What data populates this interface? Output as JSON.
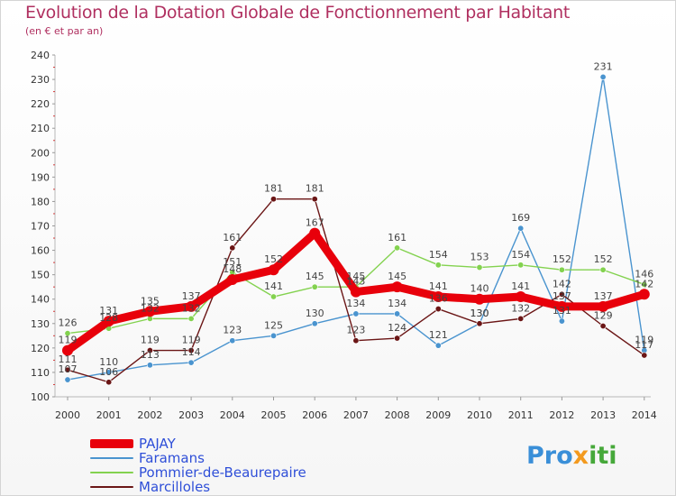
{
  "chart_data": {
    "type": "line",
    "title": "Evolution de la Dotation Globale de Fonctionnement par Habitant",
    "subtitle": "(en € et par an)",
    "categories": [
      "2000",
      "2001",
      "2002",
      "2003",
      "2004",
      "2005",
      "2006",
      "2007",
      "2008",
      "2009",
      "2010",
      "2011",
      "2012",
      "2013",
      "2014"
    ],
    "ylim": [
      100,
      240
    ],
    "yticks": [
      100,
      110,
      120,
      130,
      140,
      150,
      160,
      170,
      180,
      190,
      200,
      210,
      220,
      230,
      240
    ],
    "grid": false,
    "legend_position": "bottom-left",
    "series": [
      {
        "name": "PAJAY",
        "color": "#e8000b",
        "values": [
          119,
          131,
          135,
          137,
          148,
          152,
          167,
          143,
          145,
          141,
          140,
          141,
          137,
          137,
          142
        ]
      },
      {
        "name": "Faramans",
        "color": "#4a94cf",
        "values": [
          107,
          110,
          113,
          114,
          123,
          125,
          130,
          134,
          134,
          121,
          130,
          169,
          131,
          231,
          119
        ]
      },
      {
        "name": "Pommier-de-Beaurepaire",
        "color": "#83d24f",
        "values": [
          126,
          128,
          132,
          132,
          151,
          141,
          145,
          145,
          161,
          154,
          153,
          154,
          152,
          152,
          146
        ]
      },
      {
        "name": "Marcilloles",
        "color": "#6b1616",
        "values": [
          111,
          106,
          119,
          119,
          161,
          181,
          181,
          123,
          124,
          136,
          130,
          132,
          142,
          129,
          117
        ]
      }
    ]
  },
  "logo": {
    "p1": "Pro",
    "p2": "x",
    "p3": "iti"
  }
}
